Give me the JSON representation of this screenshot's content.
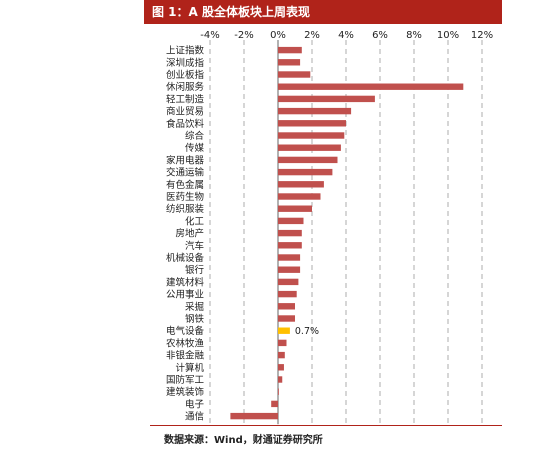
{
  "header": {
    "title": "图 1：A 股全体板块上周表现"
  },
  "footer": {
    "source": "数据来源：Wind，财通证券研究所"
  },
  "colors": {
    "bar": "#c0504d",
    "highlight": "#ffc000",
    "header_bg": "#b0231a"
  },
  "chart_data": {
    "type": "bar",
    "orientation": "horizontal",
    "title": "",
    "xlabel": "",
    "ylabel": "",
    "xlim": [
      -4,
      12
    ],
    "x_ticks": [
      "-4%",
      "-2%",
      "0%",
      "2%",
      "4%",
      "6%",
      "8%",
      "10%",
      "12%"
    ],
    "x_tick_values": [
      -4,
      -2,
      0,
      2,
      4,
      6,
      8,
      10,
      12
    ],
    "grid": "vertical dashed",
    "highlight_category": "电气设备",
    "highlight_label": "0.7%",
    "categories": [
      "上证指数",
      "深圳成指",
      "创业板指",
      "休闲服务",
      "轻工制造",
      "商业贸易",
      "食品饮料",
      "综合",
      "传媒",
      "家用电器",
      "交通运输",
      "有色金属",
      "医药生物",
      "纺织服装",
      "化工",
      "房地产",
      "汽车",
      "机械设备",
      "银行",
      "建筑材料",
      "公用事业",
      "采掘",
      "钢铁",
      "电气设备",
      "农林牧渔",
      "非银金融",
      "计算机",
      "国防军工",
      "建筑装饰",
      "电子",
      "通信"
    ],
    "values": [
      1.4,
      1.3,
      1.9,
      10.9,
      5.7,
      4.3,
      4.0,
      3.9,
      3.7,
      3.5,
      3.2,
      2.7,
      2.5,
      2.0,
      1.5,
      1.4,
      1.4,
      1.3,
      1.3,
      1.2,
      1.1,
      1.0,
      1.0,
      0.7,
      0.5,
      0.4,
      0.35,
      0.25,
      0.05,
      -0.4,
      -2.8
    ]
  }
}
